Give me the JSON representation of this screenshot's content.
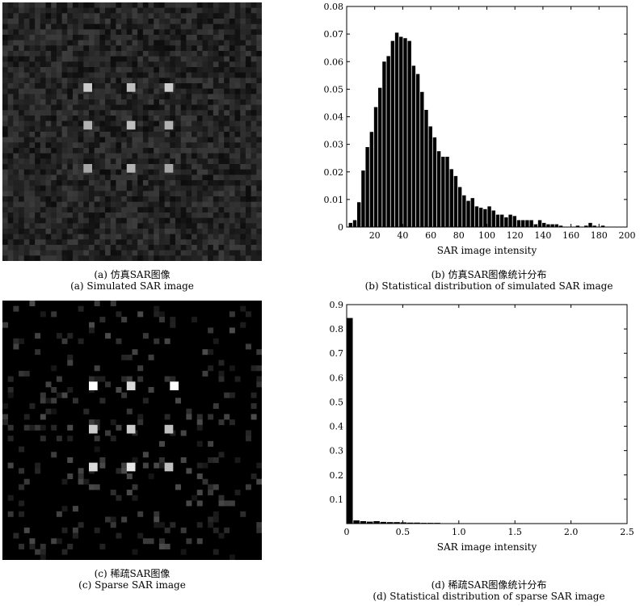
{
  "captions": {
    "a_cn": "(a) 仿真SAR图像",
    "a_en": "(a) Simulated SAR image",
    "b_cn": "(b) 仿真SAR图像统计分布",
    "b_en": "(b) Statistical distribution of simulated SAR image",
    "c_cn": "(c) 稀疏SAR图像",
    "c_en": "(c) Sparse SAR image",
    "d_cn": "(d) 稀疏SAR图像统计分布",
    "d_en": "(d) Statistical distribution of sparse SAR image"
  },
  "chart_data": [
    {
      "id": "b",
      "type": "bar",
      "title": "",
      "xlabel": "SAR image intensity",
      "ylabel": "",
      "xlim": [
        0,
        200
      ],
      "ylim": [
        0,
        0.08
      ],
      "xticks": [
        20,
        40,
        60,
        80,
        100,
        120,
        140,
        160,
        180,
        200
      ],
      "yticks": [
        0,
        0.01,
        0.02,
        0.03,
        0.04,
        0.05,
        0.06,
        0.07,
        0.08
      ],
      "ytick_labels": [
        "0",
        "0.01",
        "0.02",
        "0.03",
        "0.04",
        "0.05",
        "0.06",
        "0.07",
        "0.08"
      ],
      "bin_width": 3,
      "bins": [
        {
          "x": 3,
          "y": 0.0015
        },
        {
          "x": 6,
          "y": 0.0025
        },
        {
          "x": 9,
          "y": 0.009
        },
        {
          "x": 12,
          "y": 0.0205
        },
        {
          "x": 15,
          "y": 0.029
        },
        {
          "x": 18,
          "y": 0.0345
        },
        {
          "x": 21,
          "y": 0.0435
        },
        {
          "x": 24,
          "y": 0.0505
        },
        {
          "x": 27,
          "y": 0.06
        },
        {
          "x": 30,
          "y": 0.062
        },
        {
          "x": 33,
          "y": 0.0675
        },
        {
          "x": 36,
          "y": 0.0705
        },
        {
          "x": 39,
          "y": 0.069
        },
        {
          "x": 42,
          "y": 0.0685
        },
        {
          "x": 45,
          "y": 0.0675
        },
        {
          "x": 48,
          "y": 0.0585
        },
        {
          "x": 51,
          "y": 0.0555
        },
        {
          "x": 54,
          "y": 0.049
        },
        {
          "x": 57,
          "y": 0.0425
        },
        {
          "x": 60,
          "y": 0.0365
        },
        {
          "x": 63,
          "y": 0.0325
        },
        {
          "x": 66,
          "y": 0.0275
        },
        {
          "x": 69,
          "y": 0.0255
        },
        {
          "x": 72,
          "y": 0.0255
        },
        {
          "x": 75,
          "y": 0.021
        },
        {
          "x": 78,
          "y": 0.0185
        },
        {
          "x": 81,
          "y": 0.0145
        },
        {
          "x": 84,
          "y": 0.0115
        },
        {
          "x": 87,
          "y": 0.0095
        },
        {
          "x": 90,
          "y": 0.0105
        },
        {
          "x": 93,
          "y": 0.0075
        },
        {
          "x": 96,
          "y": 0.007
        },
        {
          "x": 99,
          "y": 0.0065
        },
        {
          "x": 102,
          "y": 0.0075
        },
        {
          "x": 105,
          "y": 0.006
        },
        {
          "x": 108,
          "y": 0.0045
        },
        {
          "x": 111,
          "y": 0.0045
        },
        {
          "x": 114,
          "y": 0.0035
        },
        {
          "x": 117,
          "y": 0.0045
        },
        {
          "x": 120,
          "y": 0.004
        },
        {
          "x": 123,
          "y": 0.0025
        },
        {
          "x": 126,
          "y": 0.0025
        },
        {
          "x": 129,
          "y": 0.0025
        },
        {
          "x": 132,
          "y": 0.0025
        },
        {
          "x": 135,
          "y": 0.001
        },
        {
          "x": 138,
          "y": 0.0025
        },
        {
          "x": 141,
          "y": 0.0015
        },
        {
          "x": 144,
          "y": 0.001
        },
        {
          "x": 147,
          "y": 0.001
        },
        {
          "x": 150,
          "y": 0.001
        },
        {
          "x": 153,
          "y": 0.0005
        },
        {
          "x": 165,
          "y": 0.0005
        },
        {
          "x": 171,
          "y": 0.0005
        },
        {
          "x": 174,
          "y": 0.0015
        },
        {
          "x": 177,
          "y": 0.0005
        },
        {
          "x": 183,
          "y": 0.0005
        }
      ]
    },
    {
      "id": "d",
      "type": "bar",
      "title": "",
      "xlabel": "SAR image intensity",
      "ylabel": "",
      "xlim": [
        0,
        2.5
      ],
      "ylim": [
        0,
        0.9
      ],
      "xticks": [
        0,
        0.5,
        1,
        1.5,
        2,
        2.5
      ],
      "xtick_labels": [
        "0",
        "0.5",
        "1.0",
        "1.5",
        "2.0",
        "2.5"
      ],
      "yticks": [
        0.1,
        0.2,
        0.3,
        0.4,
        0.5,
        0.6,
        0.7,
        0.8,
        0.9
      ],
      "ytick_labels": [
        "0.1",
        "0.2",
        "0.3",
        "0.4",
        "0.5",
        "0.6",
        "0.7",
        "0.8",
        "0.9"
      ],
      "bin_width": 0.06,
      "bins": [
        {
          "x": 0.03,
          "y": 0.845
        },
        {
          "x": 0.09,
          "y": 0.013
        },
        {
          "x": 0.15,
          "y": 0.01
        },
        {
          "x": 0.21,
          "y": 0.008
        },
        {
          "x": 0.27,
          "y": 0.01
        },
        {
          "x": 0.33,
          "y": 0.007
        },
        {
          "x": 0.39,
          "y": 0.006
        },
        {
          "x": 0.45,
          "y": 0.006
        },
        {
          "x": 0.51,
          "y": 0.005
        },
        {
          "x": 0.57,
          "y": 0.004
        },
        {
          "x": 0.63,
          "y": 0.004
        },
        {
          "x": 0.69,
          "y": 0.003
        },
        {
          "x": 0.75,
          "y": 0.003
        },
        {
          "x": 0.81,
          "y": 0.003
        }
      ]
    }
  ],
  "images": {
    "simulated": {
      "grid": 48,
      "background_level": 0.16,
      "targets": [
        {
          "row": 15,
          "col": 15,
          "level": 0.8
        },
        {
          "row": 15,
          "col": 23,
          "level": 0.75
        },
        {
          "row": 15,
          "col": 30,
          "level": 0.8
        },
        {
          "row": 22,
          "col": 15,
          "level": 0.7
        },
        {
          "row": 22,
          "col": 23,
          "level": 0.75
        },
        {
          "row": 22,
          "col": 30,
          "level": 0.7
        },
        {
          "row": 30,
          "col": 15,
          "level": 0.65
        },
        {
          "row": 30,
          "col": 23,
          "level": 0.7
        },
        {
          "row": 30,
          "col": 30,
          "level": 0.65
        }
      ]
    },
    "sparse": {
      "grid": 48,
      "background_level": 0.02,
      "targets": [
        {
          "row": 15,
          "col": 16,
          "level": 1.0
        },
        {
          "row": 15,
          "col": 23,
          "level": 0.85
        },
        {
          "row": 15,
          "col": 31,
          "level": 1.0
        },
        {
          "row": 23,
          "col": 16,
          "level": 0.8
        },
        {
          "row": 23,
          "col": 23,
          "level": 0.8
        },
        {
          "row": 23,
          "col": 30,
          "level": 0.75
        },
        {
          "row": 30,
          "col": 16,
          "level": 0.85
        },
        {
          "row": 30,
          "col": 23,
          "level": 0.9
        },
        {
          "row": 30,
          "col": 30,
          "level": 0.75
        }
      ]
    }
  }
}
